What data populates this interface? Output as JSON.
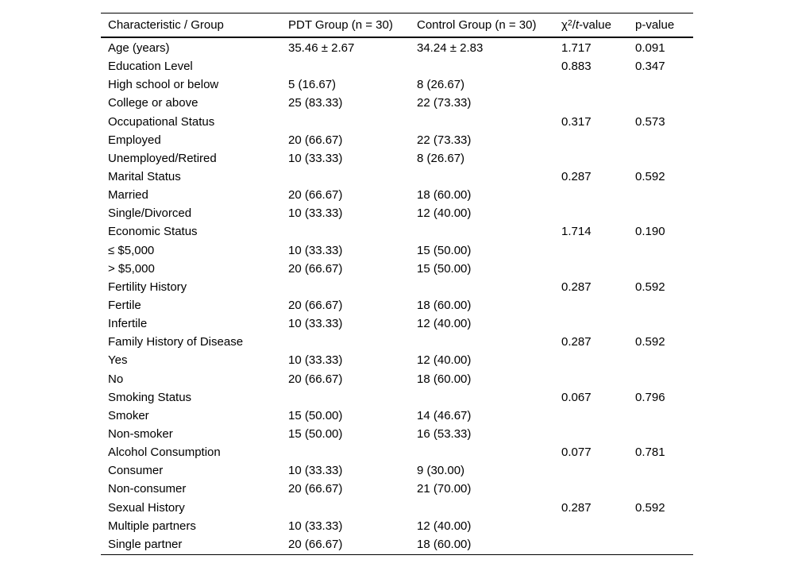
{
  "colors": {
    "background": "#ffffff",
    "text": "#000000",
    "rule": "#000000"
  },
  "table": {
    "header": {
      "characteristic": "Characteristic / Group",
      "pdt_group": "PDT Group (n = 30)",
      "control_group": "Control Group (n = 30)",
      "chi_t": {
        "chi": "χ",
        "sup": "2",
        "sep": "/",
        "t": "t",
        "rest": "-value"
      },
      "p": "p-value"
    },
    "rows": [
      {
        "label": "Age (years)",
        "pdt": "35.46 ± 2.67",
        "control": "34.24 ± 2.83",
        "chi_t": "1.717",
        "p": "0.091"
      },
      {
        "label": "Education Level",
        "pdt": "",
        "control": "",
        "chi_t": "0.883",
        "p": "0.347"
      },
      {
        "label": "High school or below",
        "pdt": "5 (16.67)",
        "control": "8 (26.67)",
        "chi_t": "",
        "p": ""
      },
      {
        "label": "College or above",
        "pdt": "25 (83.33)",
        "control": "22 (73.33)",
        "chi_t": "",
        "p": ""
      },
      {
        "label": "Occupational Status",
        "pdt": "",
        "control": "",
        "chi_t": "0.317",
        "p": "0.573"
      },
      {
        "label": "Employed",
        "pdt": "20 (66.67)",
        "control": "22 (73.33)",
        "chi_t": "",
        "p": ""
      },
      {
        "label": "Unemployed/Retired",
        "pdt": "10 (33.33)",
        "control": "8 (26.67)",
        "chi_t": "",
        "p": ""
      },
      {
        "label": "Marital Status",
        "pdt": "",
        "control": "",
        "chi_t": "0.287",
        "p": "0.592"
      },
      {
        "label": "Married",
        "pdt": "20 (66.67)",
        "control": "18 (60.00)",
        "chi_t": "",
        "p": ""
      },
      {
        "label": "Single/Divorced",
        "pdt": "10 (33.33)",
        "control": "12 (40.00)",
        "chi_t": "",
        "p": ""
      },
      {
        "label": "Economic Status",
        "pdt": "",
        "control": "",
        "chi_t": "1.714",
        "p": "0.190"
      },
      {
        "label": "≤ $5,000",
        "pdt": "10 (33.33)",
        "control": "15 (50.00)",
        "chi_t": "",
        "p": ""
      },
      {
        "label": "> $5,000",
        "pdt": "20 (66.67)",
        "control": "15 (50.00)",
        "chi_t": "",
        "p": ""
      },
      {
        "label": "Fertility History",
        "pdt": "",
        "control": "",
        "chi_t": "0.287",
        "p": "0.592"
      },
      {
        "label": "Fertile",
        "pdt": "20 (66.67)",
        "control": "18 (60.00)",
        "chi_t": "",
        "p": ""
      },
      {
        "label": "Infertile",
        "pdt": "10 (33.33)",
        "control": "12 (40.00)",
        "chi_t": "",
        "p": ""
      },
      {
        "label": "Family History of Disease",
        "pdt": "",
        "control": "",
        "chi_t": "0.287",
        "p": "0.592"
      },
      {
        "label": "Yes",
        "pdt": "10 (33.33)",
        "control": "12 (40.00)",
        "chi_t": "",
        "p": ""
      },
      {
        "label": "No",
        "pdt": "20 (66.67)",
        "control": "18 (60.00)",
        "chi_t": "",
        "p": ""
      },
      {
        "label": "Smoking Status",
        "pdt": "",
        "control": "",
        "chi_t": "0.067",
        "p": "0.796"
      },
      {
        "label": "Smoker",
        "pdt": "15 (50.00)",
        "control": "14 (46.67)",
        "chi_t": "",
        "p": ""
      },
      {
        "label": "Non-smoker",
        "pdt": "15 (50.00)",
        "control": "16 (53.33)",
        "chi_t": "",
        "p": ""
      },
      {
        "label": "Alcohol Consumption",
        "pdt": "",
        "control": "",
        "chi_t": "0.077",
        "p": "0.781"
      },
      {
        "label": "Consumer",
        "pdt": "10 (33.33)",
        "control": "9 (30.00)",
        "chi_t": "",
        "p": ""
      },
      {
        "label": "Non-consumer",
        "pdt": "20 (66.67)",
        "control": "21 (70.00)",
        "chi_t": "",
        "p": ""
      },
      {
        "label": "Sexual History",
        "pdt": "",
        "control": "",
        "chi_t": "0.287",
        "p": "0.592"
      },
      {
        "label": "Multiple partners",
        "pdt": "10 (33.33)",
        "control": "12 (40.00)",
        "chi_t": "",
        "p": ""
      },
      {
        "label": "Single partner",
        "pdt": "20 (66.67)",
        "control": "18 (60.00)",
        "chi_t": "",
        "p": ""
      }
    ]
  }
}
